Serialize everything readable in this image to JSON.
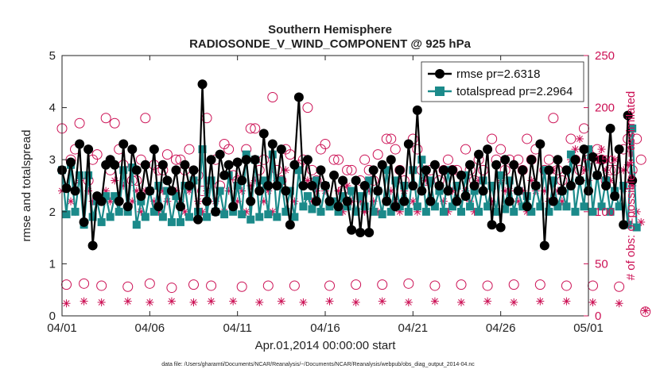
{
  "colors": {
    "rmse": "#000000",
    "totalspread": "#1b8a8a",
    "obs": "#cc1155",
    "axis": "#222222"
  },
  "chart_data": {
    "type": "line",
    "title": "Southern Hemisphere",
    "subtitle": "RADIOSONDE_V_WIND_COMPONENT @ 925 hPa",
    "xlabel": "Apr.01,2014 00:00:00 start",
    "ylabel": "rmse and totalspread",
    "y2label": "# of obs: o=possible; ∗=assimilated",
    "footnote": "data file: /Users/gharamti/Documents/NCAR/Reanalysis/~/Documents/NCAR/Reanalysis/webpub/obs_diag_output_2014-04.nc",
    "x_ticks": [
      "04/01",
      "04/06",
      "04/11",
      "04/16",
      "04/21",
      "04/26",
      "05/01"
    ],
    "x_tick_days": [
      0,
      5,
      10,
      15,
      20,
      25,
      30
    ],
    "xlim": [
      0,
      30
    ],
    "ylim": [
      0,
      5
    ],
    "y_ticks": [
      "0",
      "1",
      "2",
      "3",
      "4",
      "5"
    ],
    "y_tick_values": [
      0,
      1,
      2,
      3,
      4,
      5
    ],
    "y2lim": [
      0,
      250
    ],
    "y2_ticks": [
      "0",
      "50",
      "100",
      "150",
      "200",
      "250"
    ],
    "y2_tick_values": [
      0,
      50,
      100,
      150,
      200,
      250
    ],
    "step_days": 0.25,
    "legend": {
      "position": "top-right",
      "entries": [
        "rmse pr=2.6318",
        "totalspread pr=2.2964"
      ]
    },
    "series": [
      {
        "name": "rmse",
        "label": "rmse pr=2.6318",
        "axis": "left",
        "values": [
          2.8,
          2.45,
          2.95,
          2.4,
          3.3,
          1.8,
          3.2,
          1.35,
          2.3,
          2.2,
          2.9,
          3.0,
          2.9,
          2.2,
          3.3,
          2.1,
          3.2,
          2.8,
          2.3,
          2.9,
          2.4,
          3.2,
          2.1,
          2.9,
          2.6,
          2.4,
          2.8,
          2.1,
          2.9,
          2.5,
          2.8,
          1.85,
          4.45,
          2.2,
          3.0,
          2.0,
          3.1,
          2.7,
          2.9,
          2.1,
          2.95,
          2.6,
          3.0,
          2.2,
          3.0,
          2.4,
          3.5,
          2.5,
          3.3,
          2.5,
          3.2,
          2.4,
          1.75,
          2.9,
          4.2,
          2.5,
          3.0,
          2.5,
          2.2,
          2.8,
          2.5,
          2.2,
          2.7,
          2.1,
          2.6,
          2.2,
          1.65,
          2.6,
          1.6,
          2.5,
          1.6,
          2.8,
          2.4,
          2.9,
          2.2,
          3.0,
          2.1,
          2.8,
          2.2,
          3.3,
          2.5,
          3.95,
          2.4,
          2.8,
          2.2,
          2.9,
          2.5,
          2.8,
          2.4,
          2.8,
          2.2,
          2.7,
          2.3,
          2.9,
          2.5,
          3.1,
          2.4,
          3.2,
          1.75,
          2.9,
          1.7,
          3.0,
          2.2,
          2.9,
          2.4,
          2.8,
          2.1,
          3.0,
          2.5,
          3.3,
          1.35,
          2.8,
          2.2,
          3.0,
          2.4,
          2.8,
          2.5,
          3.0,
          2.6,
          3.2,
          2.4,
          3.05,
          2.7,
          3.0,
          2.5,
          3.6,
          2.3,
          3.2,
          1.75,
          3.85,
          2.6
        ]
      },
      {
        "name": "totalspread",
        "label": "totalspread pr=2.2964",
        "axis": "left",
        "values": [
          2.8,
          1.95,
          2.9,
          2.0,
          2.7,
          1.75,
          2.7,
          1.9,
          2.2,
          1.8,
          2.3,
          1.9,
          2.3,
          2.0,
          2.8,
          2.0,
          2.85,
          1.75,
          2.2,
          1.9,
          2.4,
          2.0,
          2.5,
          1.9,
          2.4,
          1.8,
          2.3,
          1.8,
          2.5,
          1.9,
          2.6,
          2.0,
          3.2,
          1.9,
          2.6,
          2.0,
          2.4,
          1.95,
          2.7,
          2.0,
          2.5,
          1.95,
          3.1,
          1.85,
          3.0,
          1.9,
          2.6,
          1.95,
          3.1,
          1.9,
          2.6,
          2.0,
          2.4,
          1.9,
          2.8,
          2.1,
          2.3,
          2.05,
          2.6,
          2.0,
          2.5,
          2.1,
          2.2,
          2.0,
          2.3,
          2.1,
          2.4,
          2.0,
          2.3,
          2.1,
          2.6,
          2.0,
          2.4,
          1.95,
          2.8,
          2.0,
          2.6,
          2.1,
          2.5,
          2.0,
          2.8,
          2.1,
          3.0,
          2.0,
          2.6,
          2.1,
          2.4,
          2.0,
          2.8,
          2.1,
          2.5,
          2.0,
          2.7,
          2.1,
          2.4,
          2.0,
          2.6,
          2.1,
          2.5,
          2.0,
          2.7,
          2.05,
          2.6,
          2.0,
          2.4,
          2.1,
          2.3,
          2.0,
          2.5,
          2.1,
          2.8,
          2.0,
          2.6,
          2.1,
          2.4,
          2.1,
          3.1,
          2.0,
          2.6,
          2.1,
          3.2,
          2.0,
          2.7,
          2.1,
          2.6,
          2.0,
          2.4,
          2.1,
          2.5,
          1.75,
          3.6,
          1.7
        ]
      }
    ],
    "obs_possible": [
      180,
      30,
      150,
      160,
      185,
      31,
      130,
      150,
      155,
      29,
      190,
      140,
      185,
      160,
      145,
      28,
      130,
      130,
      150,
      190,
      31,
      145,
      140,
      140,
      155,
      27,
      150,
      150,
      140,
      160,
      30,
      135,
      120,
      190,
      29,
      150,
      125,
      165,
      160,
      135,
      130,
      28,
      160,
      180,
      180,
      140,
      150,
      29,
      210,
      140,
      130,
      160,
      155,
      29,
      145,
      150,
      200,
      140,
      130,
      160,
      165,
      29,
      150,
      150,
      120,
      140,
      140,
      30,
      130,
      150,
      140,
      130,
      155,
      30,
      170,
      170,
      160,
      140,
      130,
      31,
      170,
      160,
      140,
      130,
      140,
      29,
      130,
      140,
      150,
      140,
      140,
      30,
      160,
      140,
      130,
      150,
      140,
      29,
      170,
      150,
      160,
      140,
      150,
      30,
      150,
      140,
      170,
      150,
      160,
      30,
      140,
      150,
      190,
      140,
      130,
      29,
      170,
      150,
      140,
      180,
      150,
      29,
      160,
      150,
      130,
      140,
      140,
      28,
      160,
      170,
      140,
      170,
      150,
      4
    ],
    "obs_assimilated": [
      120,
      12,
      110,
      100,
      130,
      14,
      120,
      110,
      115,
      13,
      120,
      110,
      130,
      100,
      125,
      14,
      110,
      120,
      100,
      120,
      13,
      110,
      100,
      120,
      110,
      14,
      120,
      110,
      100,
      120,
      13,
      110,
      100,
      120,
      14,
      110,
      120,
      100,
      120,
      14,
      110,
      120,
      100,
      125,
      130,
      13,
      110,
      120,
      100,
      130,
      14,
      140,
      120,
      110,
      140,
      13,
      130,
      110,
      120,
      100,
      120,
      14,
      110,
      120,
      100,
      125,
      110,
      13,
      110,
      100,
      120,
      110,
      100,
      14,
      110,
      120,
      110,
      100,
      120,
      13,
      110,
      100,
      120,
      130,
      110,
      14,
      120,
      110,
      100,
      120,
      110,
      13,
      120,
      110,
      100,
      130,
      120,
      14,
      110,
      100,
      130,
      120,
      120,
      13,
      110,
      120,
      100,
      130,
      120,
      14,
      120,
      110,
      140,
      120,
      110,
      14,
      150,
      160,
      170,
      140,
      130,
      13,
      150,
      160,
      140,
      130,
      150,
      12,
      140,
      145,
      125,
      100,
      90,
      5
    ]
  }
}
